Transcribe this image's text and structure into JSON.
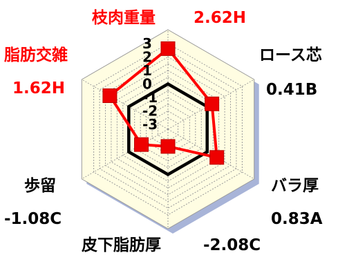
{
  "chart_data": {
    "type": "radar",
    "scale": {
      "ticks": [
        "3",
        "2",
        "1",
        "0",
        "-1",
        "-2",
        "-3"
      ],
      "min": -3,
      "max": 3
    },
    "axes": [
      {
        "name": "枝肉重量",
        "value": 2.62,
        "score_text": "2.62H",
        "highlight": true
      },
      {
        "name": "ロース芯",
        "value": 0.41,
        "score_text": "0.41B",
        "highlight": false
      },
      {
        "name": "バラ厚",
        "value": 0.83,
        "score_text": "0.83A",
        "highlight": false
      },
      {
        "name": "皮下脂肪厚",
        "value": -2.08,
        "score_text": "-2.08C",
        "highlight": false
      },
      {
        "name": "歩留",
        "value": -1.08,
        "score_text": "-1.08C",
        "highlight": false
      },
      {
        "name": "脂肪交雑",
        "value": 1.62,
        "score_text": "1.62H",
        "highlight": true
      }
    ],
    "colors": {
      "series": "#ff0000",
      "marker": "#ee0000",
      "zero_ring": "#000000",
      "plot_fill": "#fffde2",
      "shadow": "#a8b4d8",
      "grid": "#9a9a9a",
      "highlight_text": "#ff0000",
      "text": "#000000"
    }
  }
}
